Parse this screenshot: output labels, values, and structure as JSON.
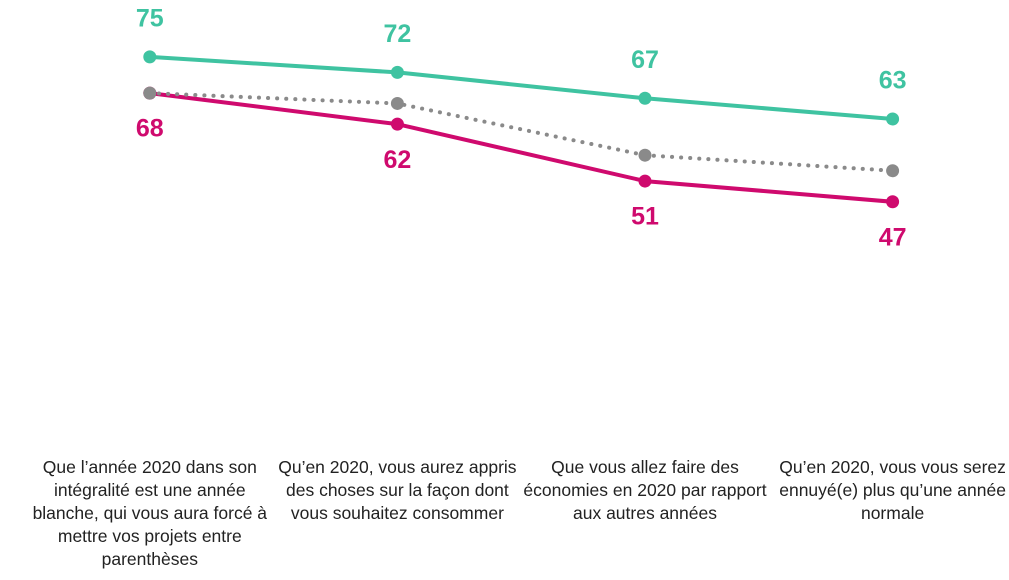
{
  "chart_data": {
    "type": "line",
    "categories": [
      "Que l’année 2020 dans son intégralité est une année blanche, qui vous aura forcé à mettre vos projets entre parenthèses",
      "Qu’en 2020, vous aurez appris des choses sur la façon dont vous souhaitez consommer",
      "Que vous allez faire des économies en 2020 par rapport aux autres années",
      "Qu’en 2020, vous vous serez ennuyé(e) plus qu’une année normale"
    ],
    "series": [
      {
        "color": "#3fc3a1",
        "values": [
          75,
          72,
          67,
          63
        ],
        "label_position": "above",
        "dash": "solid"
      },
      {
        "color": "#cf0a6e",
        "values": [
          68,
          62,
          51,
          47
        ],
        "label_position": "below",
        "dash": "solid"
      },
      {
        "color": "#8a8a8a",
        "values": [
          68,
          66,
          56,
          53
        ],
        "dash": "dotted"
      }
    ],
    "ylim": [
      0,
      80
    ]
  }
}
